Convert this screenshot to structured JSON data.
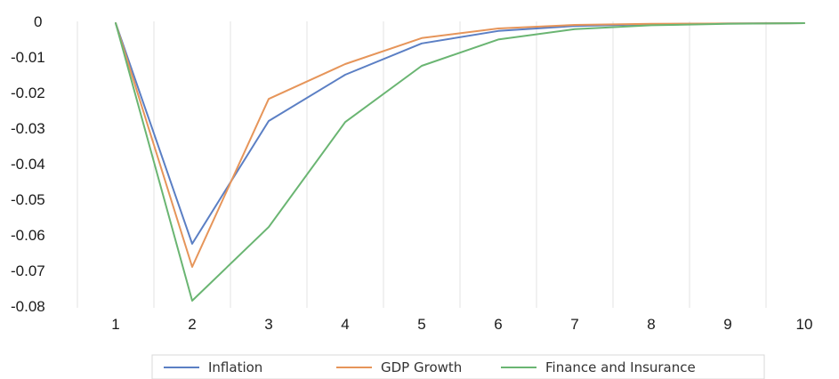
{
  "chart_data": {
    "type": "line",
    "title": "",
    "xlabel": "",
    "ylabel": "",
    "categories": [
      "1",
      "2",
      "3",
      "4",
      "5",
      "6",
      "7",
      "8",
      "9",
      "10"
    ],
    "y_ticks": [
      "0",
      "-0.01",
      "-0.02",
      "-0.03",
      "-0.04",
      "-0.05",
      "-0.06",
      "-0.07",
      "-0.08"
    ],
    "ylim": [
      -0.08,
      0
    ],
    "grid": "vertical",
    "legend_position": "bottom",
    "series": [
      {
        "name": "Inflation",
        "color": "#5b7fc4",
        "values": [
          0,
          -0.062,
          -0.0275,
          -0.0145,
          -0.0057,
          -0.0022,
          -0.0008,
          -0.0003,
          -0.0001,
          0
        ]
      },
      {
        "name": "GDP Growth",
        "color": "#e6955a",
        "values": [
          0,
          -0.0685,
          -0.0213,
          -0.0115,
          -0.0042,
          -0.0015,
          -0.0005,
          -0.0002,
          -0.0001,
          0
        ]
      },
      {
        "name": "Finance and Insurance",
        "color": "#6ab572",
        "values": [
          0,
          -0.078,
          -0.0573,
          -0.0278,
          -0.012,
          -0.0046,
          -0.0017,
          -0.0006,
          -0.0002,
          0
        ]
      }
    ]
  }
}
